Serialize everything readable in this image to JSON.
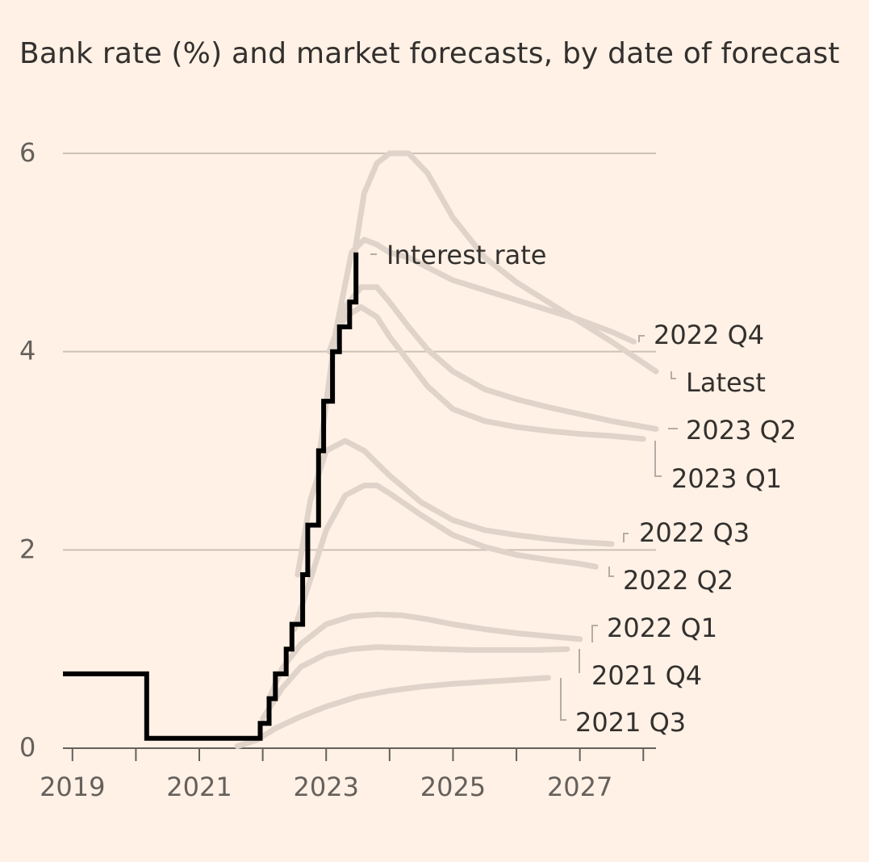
{
  "chart_data": {
    "type": "line",
    "title": "Bank rate (%) and market forecasts, by date of forecast",
    "xlabel": "",
    "ylabel": "",
    "xlim": [
      2018.85,
      2028.2
    ],
    "ylim": [
      0,
      6
    ],
    "x_ticks": [
      2019,
      2020,
      2021,
      2022,
      2023,
      2024,
      2025,
      2026,
      2027,
      2028
    ],
    "x_tick_labels": [
      {
        "value": 2019,
        "label": "2019"
      },
      {
        "value": 2021,
        "label": "2021"
      },
      {
        "value": 2023,
        "label": "2023"
      },
      {
        "value": 2025,
        "label": "2025"
      },
      {
        "value": 2027,
        "label": "2027"
      }
    ],
    "y_ticks": [
      {
        "value": 0,
        "label": "0"
      },
      {
        "value": 2,
        "label": "2"
      },
      {
        "value": 4,
        "label": "4"
      },
      {
        "value": 6,
        "label": "6"
      }
    ],
    "grid": true,
    "colors": {
      "background": "#fff1e5",
      "grid": "#ccc1b7",
      "interest_rate": "#000000",
      "forecast": "#dfd3ca",
      "connector": "#b5aca5",
      "text": "#33302e",
      "axis_text": "#66605c"
    },
    "interest_rate": {
      "name": "Interest rate",
      "label": "Interest rate",
      "x": [
        2018.85,
        2020.17,
        2020.17,
        2021.96,
        2021.96,
        2022.1,
        2022.1,
        2022.2,
        2022.2,
        2022.37,
        2022.37,
        2022.46,
        2022.46,
        2022.63,
        2022.63,
        2022.71,
        2022.71,
        2022.88,
        2022.88,
        2022.96,
        2022.96,
        2023.1,
        2023.1,
        2023.21,
        2023.21,
        2023.37,
        2023.37,
        2023.47,
        2023.47
      ],
      "y": [
        0.75,
        0.75,
        0.1,
        0.1,
        0.25,
        0.25,
        0.5,
        0.5,
        0.75,
        0.75,
        1.0,
        1.0,
        1.25,
        1.25,
        1.75,
        1.75,
        2.25,
        2.25,
        3.0,
        3.0,
        3.5,
        3.5,
        4.0,
        4.0,
        4.25,
        4.25,
        4.5,
        4.5,
        5.0
      ]
    },
    "series": [
      {
        "name": "2022 Q4",
        "label": "2022 Q4",
        "x": [
          2022.9,
          2023.15,
          2023.4,
          2023.6,
          2023.8,
          2024.0,
          2024.3,
          2024.6,
          2025.0,
          2025.5,
          2026.0,
          2026.5,
          2027.0,
          2027.5,
          2027.85
        ],
        "y": [
          3.0,
          4.2,
          5.0,
          5.13,
          5.08,
          5.0,
          4.95,
          4.85,
          4.72,
          4.62,
          4.52,
          4.42,
          4.32,
          4.2,
          4.1
        ]
      },
      {
        "name": "Latest",
        "label": "Latest",
        "x": [
          2023.45,
          2023.6,
          2023.8,
          2024.0,
          2024.3,
          2024.6,
          2025.0,
          2025.5,
          2026.0,
          2026.5,
          2027.0,
          2027.5,
          2028.2
        ],
        "y": [
          5.0,
          5.6,
          5.9,
          6.0,
          6.0,
          5.8,
          5.35,
          4.95,
          4.7,
          4.5,
          4.3,
          4.1,
          3.8
        ]
      },
      {
        "name": "2023 Q2",
        "label": "2023 Q2",
        "x": [
          2023.05,
          2023.3,
          2023.55,
          2023.8,
          2024.0,
          2024.3,
          2024.6,
          2025.0,
          2025.5,
          2026.0,
          2026.5,
          2027.0,
          2027.5,
          2028.2
        ],
        "y": [
          4.0,
          4.45,
          4.65,
          4.65,
          4.5,
          4.25,
          4.02,
          3.8,
          3.62,
          3.52,
          3.44,
          3.37,
          3.3,
          3.22
        ]
      },
      {
        "name": "2023 Q1",
        "label": "2023 Q1",
        "x": [
          2023.05,
          2023.3,
          2023.55,
          2023.8,
          2024.0,
          2024.3,
          2024.6,
          2025.0,
          2025.5,
          2026.0,
          2026.5,
          2027.0,
          2027.5,
          2028.0
        ],
        "y": [
          4.0,
          4.35,
          4.45,
          4.35,
          4.15,
          3.9,
          3.65,
          3.42,
          3.3,
          3.24,
          3.2,
          3.17,
          3.15,
          3.12
        ]
      },
      {
        "name": "2022 Q3",
        "label": "2022 Q3",
        "x": [
          2022.55,
          2022.75,
          2023.0,
          2023.3,
          2023.6,
          2024.0,
          2024.5,
          2025.0,
          2025.5,
          2026.0,
          2026.5,
          2027.0,
          2027.5
        ],
        "y": [
          1.75,
          2.5,
          3.0,
          3.1,
          3.0,
          2.75,
          2.48,
          2.3,
          2.2,
          2.15,
          2.11,
          2.08,
          2.06
        ]
      },
      {
        "name": "2022 Q2",
        "label": "2022 Q2",
        "x": [
          2022.5,
          2022.75,
          2023.0,
          2023.3,
          2023.6,
          2023.8,
          2024.0,
          2024.5,
          2025.0,
          2025.5,
          2026.0,
          2026.5,
          2027.0,
          2027.25
        ],
        "y": [
          1.2,
          1.7,
          2.2,
          2.55,
          2.65,
          2.65,
          2.57,
          2.35,
          2.15,
          2.03,
          1.95,
          1.9,
          1.86,
          1.83
        ]
      },
      {
        "name": "2022 Q1",
        "label": "2022 Q1",
        "x": [
          2022.1,
          2022.3,
          2022.6,
          2023.0,
          2023.4,
          2023.8,
          2024.2,
          2024.6,
          2025.0,
          2025.5,
          2026.0,
          2026.5,
          2027.0
        ],
        "y": [
          0.5,
          0.8,
          1.05,
          1.25,
          1.33,
          1.35,
          1.34,
          1.3,
          1.25,
          1.2,
          1.16,
          1.13,
          1.1
        ]
      },
      {
        "name": "2021 Q4",
        "label": "2021 Q4",
        "x": [
          2022.0,
          2022.3,
          2022.6,
          2023.0,
          2023.4,
          2023.8,
          2024.3,
          2024.8,
          2025.3,
          2025.8,
          2026.3,
          2026.8
        ],
        "y": [
          0.3,
          0.6,
          0.82,
          0.95,
          1.0,
          1.02,
          1.01,
          1.0,
          0.99,
          0.99,
          0.99,
          1.0
        ]
      },
      {
        "name": "2021 Q3",
        "label": "2021 Q3",
        "x": [
          2021.6,
          2021.9,
          2022.2,
          2022.6,
          2023.0,
          2023.5,
          2024.0,
          2024.5,
          2025.0,
          2025.5,
          2026.0,
          2026.5
        ],
        "y": [
          0.02,
          0.08,
          0.2,
          0.32,
          0.42,
          0.52,
          0.58,
          0.62,
          0.65,
          0.67,
          0.69,
          0.71
        ]
      }
    ]
  }
}
